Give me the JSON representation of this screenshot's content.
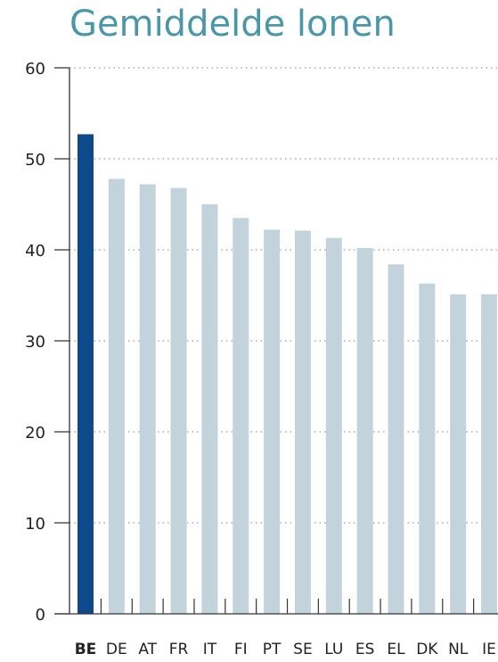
{
  "chart_data": {
    "type": "bar",
    "title": "Gemiddelde lonen",
    "xlabel": "",
    "ylabel": "",
    "ylim": [
      0,
      60
    ],
    "yticks": [
      0,
      10,
      20,
      30,
      40,
      50,
      60
    ],
    "grid": true,
    "categories": [
      "BE",
      "DE",
      "AT",
      "FR",
      "IT",
      "FI",
      "PT",
      "SE",
      "LU",
      "ES",
      "EL",
      "DK",
      "NL",
      "IE"
    ],
    "values": [
      52.7,
      47.8,
      47.2,
      46.8,
      45.0,
      43.5,
      42.2,
      42.1,
      41.3,
      40.2,
      38.4,
      36.3,
      35.1,
      35.1
    ],
    "highlight_category": "BE",
    "colors": {
      "highlight": "#0d4a8c",
      "bar": "#c2d3dc",
      "title": "#4a97aa",
      "grid": "#9a9a9a",
      "axis": "#333333"
    }
  }
}
